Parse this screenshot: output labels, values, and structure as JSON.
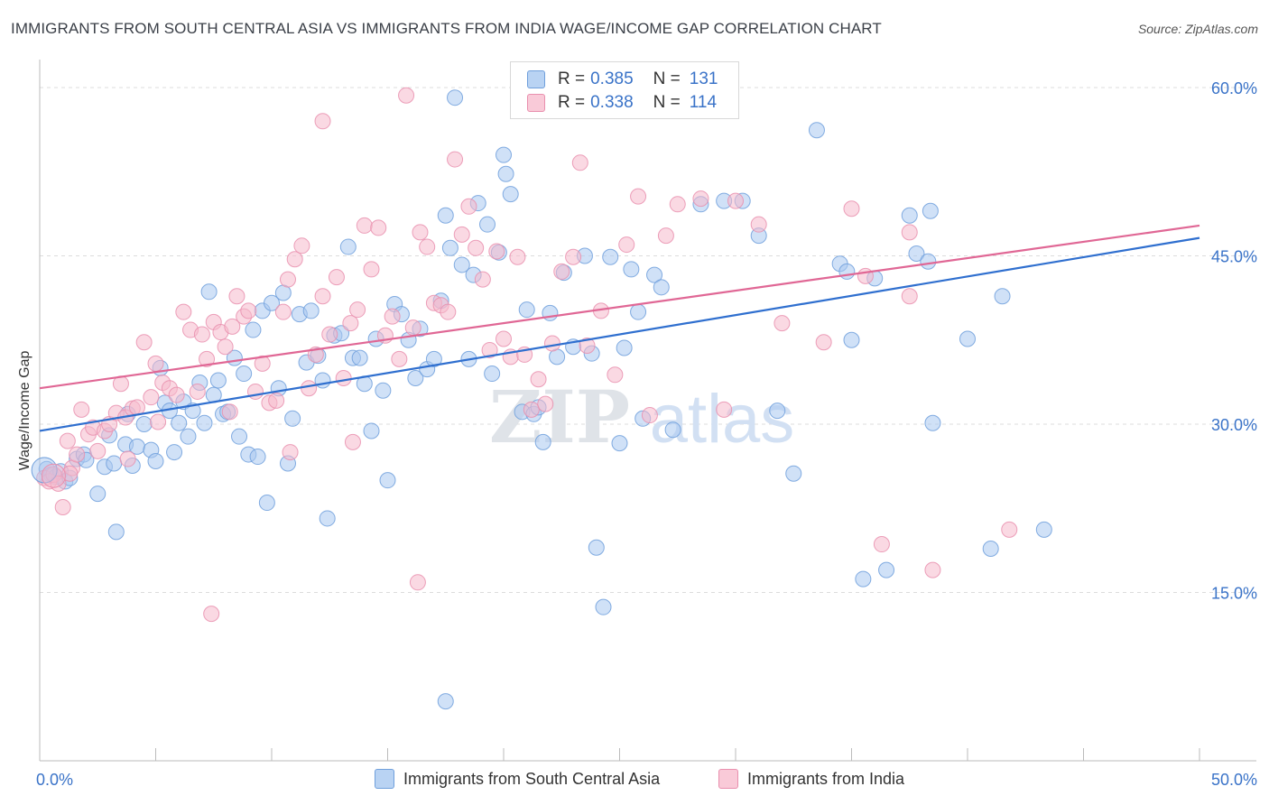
{
  "header": {
    "title": "IMMIGRANTS FROM SOUTH CENTRAL ASIA VS IMMIGRANTS FROM INDIA WAGE/INCOME GAP CORRELATION CHART",
    "source": "Source: ZipAtlas.com"
  },
  "watermark": {
    "zip": "ZIP",
    "atlas": "atlas"
  },
  "legend": {
    "r_label": "R =",
    "n_label": "N =",
    "blue": {
      "r": "0.385",
      "n": "131"
    },
    "pink": {
      "r": "0.338",
      "n": "114"
    }
  },
  "colors": {
    "blue_fill": "#a9c8f0",
    "blue_stroke": "#6f9fdc",
    "blue_line": "#2f6fcf",
    "pink_fill": "#f6b9cc",
    "pink_stroke": "#e98fae",
    "pink_line": "#e06795",
    "tick_label": "#3a73c8"
  },
  "chart_data": {
    "type": "scatter",
    "title": "IMMIGRANTS FROM SOUTH CENTRAL ASIA VS IMMIGRANTS FROM INDIA WAGE/INCOME GAP CORRELATION CHART",
    "xlabel": "",
    "ylabel": "Wage/Income Gap",
    "xlim": [
      0,
      50
    ],
    "ylim": [
      0,
      62
    ],
    "x_tick_labels": [
      "0.0%",
      "50.0%"
    ],
    "y_ticks": [
      {
        "value": 15,
        "label": "15.0%"
      },
      {
        "value": 30,
        "label": "30.0%"
      },
      {
        "value": 45,
        "label": "45.0%"
      },
      {
        "value": 60,
        "label": "60.0%"
      }
    ],
    "grid": true,
    "legend_position": "top-center",
    "series": [
      {
        "name": "Immigrants from South Central Asia",
        "trend": {
          "x0": 0,
          "y0": 29.4,
          "x1": 50,
          "y1": 46.6
        },
        "points": [
          [
            0.3,
            26.0
          ],
          [
            0.5,
            25.5
          ],
          [
            0.7,
            25.3
          ],
          [
            0.9,
            25.8
          ],
          [
            1.1,
            24.9
          ],
          [
            1.3,
            25.2
          ],
          [
            1.6,
            26.9
          ],
          [
            1.9,
            27.3
          ],
          [
            2.0,
            26.8
          ],
          [
            2.5,
            23.8
          ],
          [
            2.8,
            26.2
          ],
          [
            3.0,
            29.0
          ],
          [
            3.2,
            26.5
          ],
          [
            3.3,
            20.4
          ],
          [
            3.7,
            28.2
          ],
          [
            3.8,
            30.9
          ],
          [
            4.0,
            26.3
          ],
          [
            4.2,
            28.0
          ],
          [
            4.5,
            30.0
          ],
          [
            4.8,
            27.7
          ],
          [
            5.0,
            26.7
          ],
          [
            5.2,
            35.0
          ],
          [
            5.4,
            31.9
          ],
          [
            5.6,
            31.2
          ],
          [
            5.8,
            27.5
          ],
          [
            6.0,
            30.1
          ],
          [
            6.2,
            32.0
          ],
          [
            6.4,
            28.9
          ],
          [
            6.6,
            31.2
          ],
          [
            6.9,
            33.7
          ],
          [
            7.1,
            30.1
          ],
          [
            7.3,
            41.8
          ],
          [
            7.5,
            32.6
          ],
          [
            7.7,
            33.9
          ],
          [
            7.9,
            30.9
          ],
          [
            8.1,
            31.1
          ],
          [
            8.4,
            35.9
          ],
          [
            8.6,
            28.9
          ],
          [
            8.8,
            34.5
          ],
          [
            9.0,
            27.3
          ],
          [
            9.2,
            38.4
          ],
          [
            9.4,
            27.1
          ],
          [
            9.6,
            40.1
          ],
          [
            9.8,
            23.0
          ],
          [
            10.0,
            40.8
          ],
          [
            10.3,
            33.2
          ],
          [
            10.5,
            41.7
          ],
          [
            10.7,
            26.5
          ],
          [
            10.9,
            30.5
          ],
          [
            11.2,
            39.8
          ],
          [
            11.5,
            35.5
          ],
          [
            11.7,
            40.1
          ],
          [
            12.0,
            36.1
          ],
          [
            12.2,
            33.9
          ],
          [
            12.4,
            21.6
          ],
          [
            12.7,
            37.9
          ],
          [
            13.0,
            38.1
          ],
          [
            13.3,
            45.8
          ],
          [
            13.5,
            35.9
          ],
          [
            13.8,
            35.9
          ],
          [
            14.0,
            33.6
          ],
          [
            14.3,
            29.4
          ],
          [
            14.5,
            37.6
          ],
          [
            14.8,
            33.0
          ],
          [
            15.0,
            25.0
          ],
          [
            15.3,
            40.7
          ],
          [
            15.6,
            39.8
          ],
          [
            15.9,
            37.5
          ],
          [
            16.2,
            34.1
          ],
          [
            16.4,
            38.5
          ],
          [
            16.7,
            34.9
          ],
          [
            17.0,
            35.8
          ],
          [
            17.3,
            41.0
          ],
          [
            17.5,
            48.6
          ],
          [
            17.7,
            45.7
          ],
          [
            17.9,
            59.1
          ],
          [
            18.2,
            44.2
          ],
          [
            18.5,
            35.8
          ],
          [
            18.7,
            43.3
          ],
          [
            18.9,
            49.7
          ],
          [
            19.3,
            47.8
          ],
          [
            19.5,
            34.5
          ],
          [
            19.8,
            45.3
          ],
          [
            20.0,
            54.0
          ],
          [
            20.1,
            52.3
          ],
          [
            20.3,
            50.5
          ],
          [
            20.8,
            31.1
          ],
          [
            21.0,
            40.2
          ],
          [
            21.3,
            30.9
          ],
          [
            21.5,
            31.5
          ],
          [
            21.7,
            28.4
          ],
          [
            22.0,
            39.9
          ],
          [
            22.3,
            36.0
          ],
          [
            22.6,
            43.5
          ],
          [
            23.0,
            36.9
          ],
          [
            23.5,
            45.0
          ],
          [
            23.8,
            36.3
          ],
          [
            24.0,
            19.0
          ],
          [
            24.3,
            13.7
          ],
          [
            24.6,
            44.9
          ],
          [
            25.0,
            28.3
          ],
          [
            25.2,
            36.8
          ],
          [
            25.5,
            43.8
          ],
          [
            25.8,
            40.0
          ],
          [
            26.0,
            30.5
          ],
          [
            26.5,
            43.3
          ],
          [
            26.8,
            42.2
          ],
          [
            27.3,
            29.5
          ],
          [
            28.5,
            49.6
          ],
          [
            29.5,
            49.9
          ],
          [
            30.3,
            49.9
          ],
          [
            31.0,
            46.8
          ],
          [
            31.8,
            31.2
          ],
          [
            32.5,
            25.6
          ],
          [
            33.5,
            56.2
          ],
          [
            34.5,
            44.3
          ],
          [
            34.8,
            43.6
          ],
          [
            35.0,
            37.5
          ],
          [
            35.5,
            16.2
          ],
          [
            36.0,
            43.0
          ],
          [
            36.5,
            17.0
          ],
          [
            37.5,
            48.6
          ],
          [
            37.8,
            45.2
          ],
          [
            38.3,
            44.5
          ],
          [
            38.5,
            30.1
          ],
          [
            40.0,
            37.6
          ],
          [
            41.0,
            18.9
          ],
          [
            41.5,
            41.4
          ],
          [
            43.3,
            20.6
          ],
          [
            17.5,
            5.3
          ],
          [
            38.4,
            49.0
          ]
        ]
      },
      {
        "name": "Immigrants from India",
        "trend": {
          "x0": 0,
          "y0": 33.2,
          "x1": 50,
          "y1": 47.7
        },
        "points": [
          [
            0.2,
            25.2
          ],
          [
            0.4,
            24.9
          ],
          [
            0.6,
            25.5
          ],
          [
            0.8,
            24.7
          ],
          [
            1.0,
            22.6
          ],
          [
            1.2,
            28.5
          ],
          [
            1.4,
            26.1
          ],
          [
            1.6,
            27.3
          ],
          [
            1.8,
            31.3
          ],
          [
            2.1,
            29.1
          ],
          [
            2.3,
            29.7
          ],
          [
            2.5,
            27.6
          ],
          [
            2.8,
            29.4
          ],
          [
            3.0,
            30.0
          ],
          [
            3.3,
            31.0
          ],
          [
            3.5,
            33.6
          ],
          [
            3.7,
            30.6
          ],
          [
            4.0,
            31.4
          ],
          [
            4.2,
            31.5
          ],
          [
            4.5,
            37.3
          ],
          [
            4.8,
            32.4
          ],
          [
            5.0,
            35.4
          ],
          [
            5.3,
            33.7
          ],
          [
            5.6,
            33.2
          ],
          [
            5.9,
            32.6
          ],
          [
            6.2,
            40.0
          ],
          [
            6.5,
            38.4
          ],
          [
            6.8,
            32.9
          ],
          [
            7.0,
            38.0
          ],
          [
            7.2,
            35.8
          ],
          [
            7.5,
            39.1
          ],
          [
            7.8,
            38.2
          ],
          [
            8.0,
            36.9
          ],
          [
            8.3,
            38.7
          ],
          [
            8.5,
            41.4
          ],
          [
            8.8,
            39.6
          ],
          [
            9.0,
            40.1
          ],
          [
            9.3,
            32.9
          ],
          [
            9.6,
            35.4
          ],
          [
            9.9,
            31.9
          ],
          [
            10.2,
            32.1
          ],
          [
            10.5,
            40.0
          ],
          [
            10.7,
            42.9
          ],
          [
            11.0,
            44.7
          ],
          [
            11.3,
            45.9
          ],
          [
            11.6,
            33.2
          ],
          [
            11.9,
            36.2
          ],
          [
            12.2,
            41.4
          ],
          [
            12.5,
            38.0
          ],
          [
            12.8,
            43.1
          ],
          [
            13.1,
            34.1
          ],
          [
            13.4,
            39.0
          ],
          [
            13.7,
            40.2
          ],
          [
            14.0,
            47.7
          ],
          [
            14.3,
            43.8
          ],
          [
            14.6,
            47.5
          ],
          [
            14.9,
            37.9
          ],
          [
            15.2,
            39.6
          ],
          [
            15.5,
            35.8
          ],
          [
            15.8,
            59.3
          ],
          [
            16.1,
            38.6
          ],
          [
            16.4,
            47.1
          ],
          [
            16.7,
            45.8
          ],
          [
            17.0,
            40.8
          ],
          [
            17.3,
            40.6
          ],
          [
            17.6,
            40.0
          ],
          [
            17.9,
            53.6
          ],
          [
            18.2,
            46.9
          ],
          [
            18.5,
            49.4
          ],
          [
            18.8,
            45.7
          ],
          [
            19.1,
            42.9
          ],
          [
            19.4,
            36.6
          ],
          [
            19.7,
            45.4
          ],
          [
            20.0,
            37.6
          ],
          [
            20.3,
            36.0
          ],
          [
            20.6,
            44.9
          ],
          [
            20.9,
            36.2
          ],
          [
            21.2,
            31.3
          ],
          [
            21.5,
            34.0
          ],
          [
            21.8,
            31.8
          ],
          [
            22.1,
            37.2
          ],
          [
            22.5,
            43.6
          ],
          [
            23.0,
            44.9
          ],
          [
            23.3,
            53.3
          ],
          [
            23.6,
            37.0
          ],
          [
            24.2,
            40.1
          ],
          [
            24.8,
            34.4
          ],
          [
            25.3,
            46.0
          ],
          [
            25.8,
            50.3
          ],
          [
            26.3,
            30.8
          ],
          [
            27.0,
            46.8
          ],
          [
            27.5,
            49.6
          ],
          [
            28.5,
            50.1
          ],
          [
            29.5,
            31.3
          ],
          [
            30.0,
            49.9
          ],
          [
            31.0,
            47.8
          ],
          [
            32.0,
            39.0
          ],
          [
            33.8,
            37.3
          ],
          [
            35.0,
            49.2
          ],
          [
            35.6,
            43.2
          ],
          [
            36.3,
            19.3
          ],
          [
            37.5,
            47.1
          ],
          [
            38.5,
            17.0
          ],
          [
            41.8,
            20.6
          ],
          [
            12.2,
            57.0
          ],
          [
            7.4,
            13.1
          ],
          [
            16.3,
            15.9
          ],
          [
            10.8,
            27.5
          ],
          [
            8.2,
            31.1
          ],
          [
            13.5,
            28.4
          ],
          [
            1.3,
            25.6
          ],
          [
            5.1,
            30.2
          ],
          [
            3.8,
            26.9
          ],
          [
            37.5,
            41.4
          ]
        ]
      }
    ]
  },
  "bottom_legend": {
    "blue_label": "Immigrants from South Central Asia",
    "pink_label": "Immigrants from India"
  }
}
